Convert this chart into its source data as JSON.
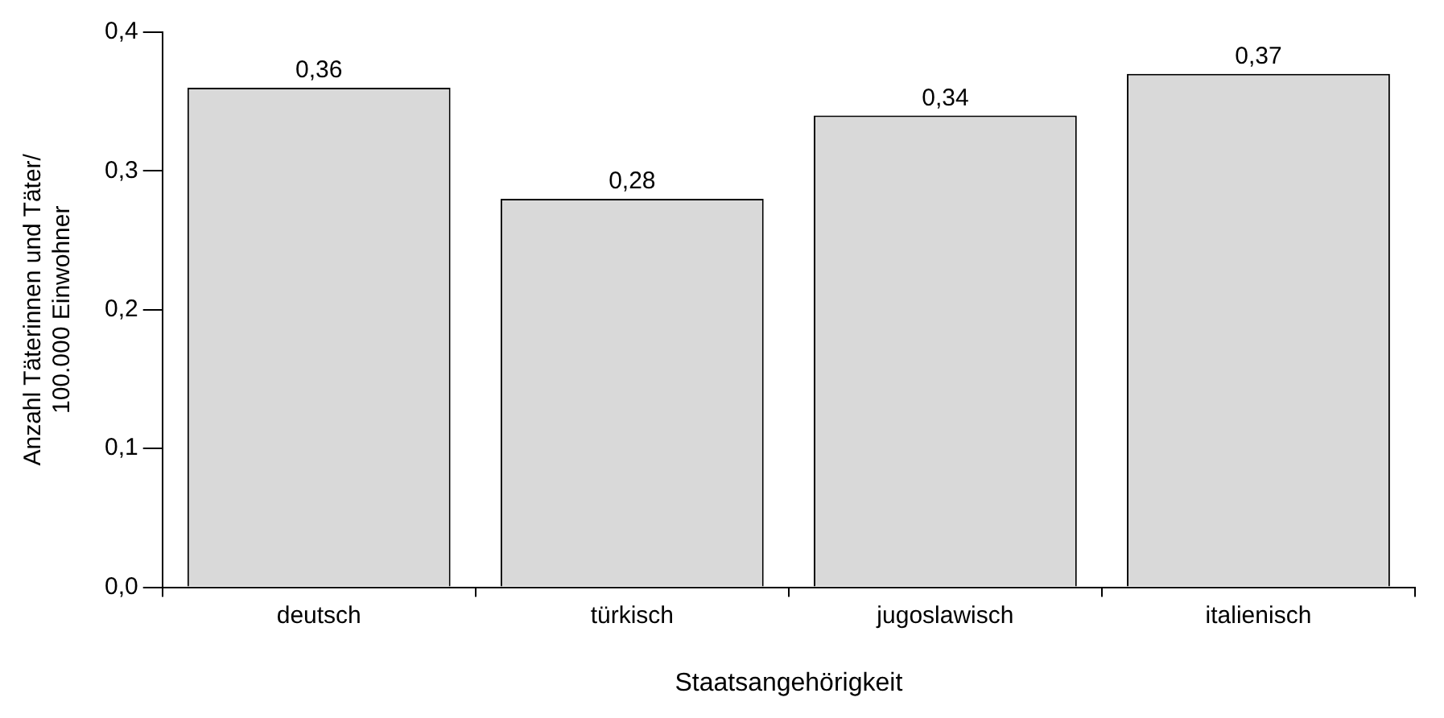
{
  "chart_data": {
    "type": "bar",
    "xlabel": "Staatsangehörigkeit",
    "ylabel": "Anzahl Täterinnen und Täter/\n100.000 Einwohner",
    "categories": [
      "deutsch",
      "türkisch",
      "jugoslawisch",
      "italienisch"
    ],
    "values": [
      0.36,
      0.28,
      0.34,
      0.37
    ],
    "value_labels": [
      "0,36",
      "0,28",
      "0,34",
      "0,37"
    ],
    "color": "#d9d9d9",
    "ylim": [
      0,
      0.4
    ],
    "yticks": [
      {
        "value": 0,
        "label": "0,0"
      },
      {
        "value": 0.1,
        "label": "0,1"
      },
      {
        "value": 0.2,
        "label": "0,2"
      },
      {
        "value": 0.3,
        "label": "0,3"
      },
      {
        "value": 0.4,
        "label": "0,4"
      }
    ],
    "grid": false,
    "legend": false
  }
}
